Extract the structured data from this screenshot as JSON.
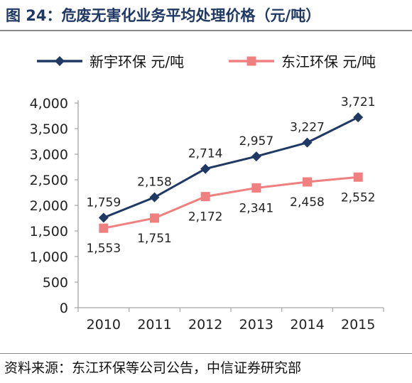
{
  "figure": {
    "title": "图 24：危废无害化业务平均处理价格（元/吨）",
    "source": "资料来源：东江环保等公司公告，中信证券研究部"
  },
  "chart_data": {
    "type": "line",
    "title": "",
    "xlabel": "",
    "ylabel": "",
    "categories": [
      "2010",
      "2011",
      "2012",
      "2013",
      "2014",
      "2015"
    ],
    "ylim": [
      0,
      4000
    ],
    "y_ticks": [
      0,
      500,
      1000,
      1500,
      2000,
      2500,
      3000,
      3500,
      4000
    ],
    "y_tick_labels": [
      "0",
      "500",
      "1,000",
      "1,500",
      "2,000",
      "2,500",
      "3,000",
      "3,500",
      "4,000"
    ],
    "grid": false,
    "legend_position": "top",
    "series": [
      {
        "name": "新宇环保 元/吨",
        "values": [
          1759,
          2158,
          2714,
          2957,
          3227,
          3721
        ],
        "labels": [
          "1,759",
          "2,158",
          "2,714",
          "2,957",
          "3,227",
          "3,721"
        ],
        "color": "#1f3864",
        "marker": "diamond",
        "label_position": "above"
      },
      {
        "name": "东江环保 元/吨",
        "values": [
          1553,
          1751,
          2172,
          2341,
          2458,
          2552
        ],
        "labels": [
          "1,553",
          "1,751",
          "2,172",
          "2,341",
          "2,458",
          "2,552"
        ],
        "color": "#f08080",
        "marker": "square",
        "label_position": "below"
      }
    ]
  }
}
